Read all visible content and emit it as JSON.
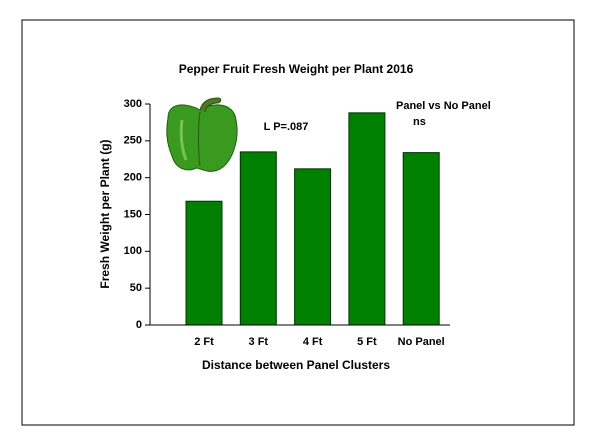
{
  "chart_data": {
    "type": "bar",
    "title": "Pepper Fruit Fresh Weight per Plant 2016",
    "x_label": "Distance between Panel Clusters",
    "y_label": "Fresh Weight per Plant (g)",
    "categories": [
      "2 Ft",
      "3 Ft",
      "4 Ft",
      "5 Ft",
      "No Panel"
    ],
    "values": [
      168,
      235,
      212,
      288,
      234
    ],
    "color": "#008000",
    "ylim": [
      0,
      300
    ],
    "yticks": [
      0,
      50,
      100,
      150,
      200,
      250,
      300
    ],
    "grid": false,
    "annotations": [
      "L  P=.087",
      "Panel vs No Panel",
      "ns"
    ]
  }
}
